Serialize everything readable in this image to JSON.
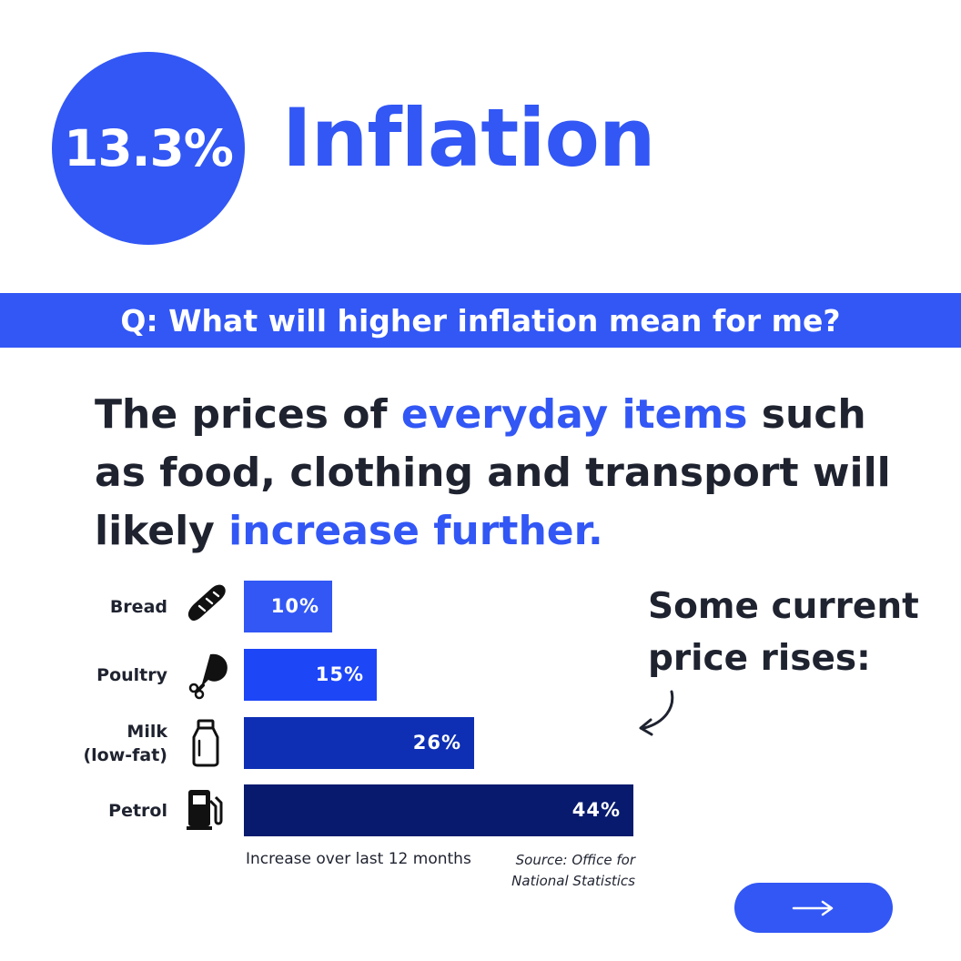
{
  "badge": {
    "value": "13.3%"
  },
  "title": "Inflation",
  "question": "Q: What will higher inflation mean for me?",
  "headline": {
    "part1": "The prices of ",
    "highlight1": "everyday items",
    "part2": " such as food, clothing and transport will likely ",
    "highlight2": "increase further."
  },
  "aside": "Some current price rises:",
  "colors": {
    "accent": "#3257f5",
    "text": "#1f2330"
  },
  "chart_data": {
    "type": "bar",
    "orientation": "horizontal",
    "categories": [
      "Bread",
      "Poultry",
      "Milk (low-fat)",
      "Petrol"
    ],
    "category_lines": [
      [
        "Bread"
      ],
      [
        "Poultry"
      ],
      [
        "Milk",
        "(low-fat)"
      ],
      [
        "Petrol"
      ]
    ],
    "icons": [
      "baguette-icon",
      "chicken-leg-icon",
      "milk-bottle-icon",
      "fuel-pump-icon"
    ],
    "values": [
      10,
      15,
      26,
      44
    ],
    "value_labels": [
      "10%",
      "15%",
      "26%",
      "44%"
    ],
    "bar_colors": [
      "#3257f5",
      "#1d46f7",
      "#0e2fb4",
      "#081a6e"
    ],
    "xlabel": "Increase over last 12 months",
    "source": "Source: Office for National Statistics"
  },
  "next_button": {
    "icon": "arrow-right-icon"
  }
}
